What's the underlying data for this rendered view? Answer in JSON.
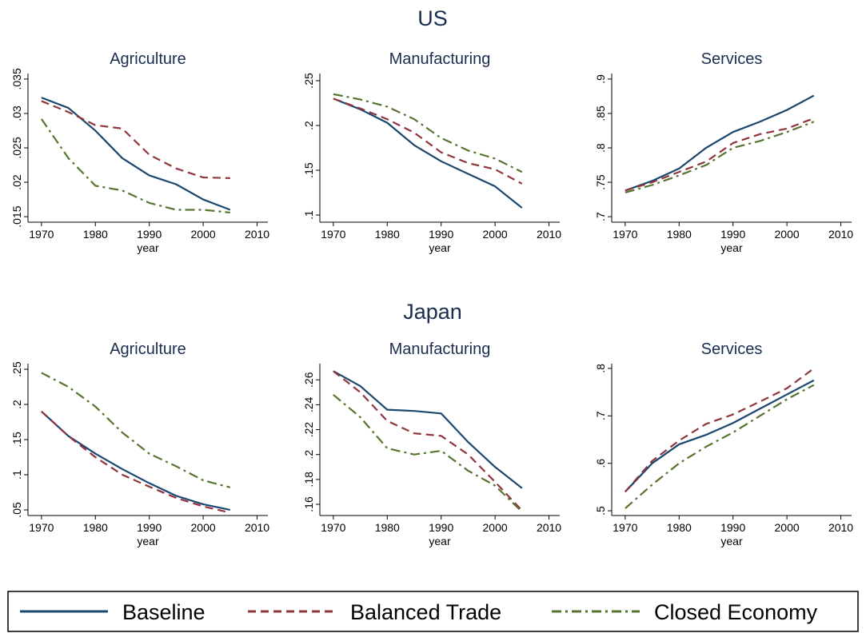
{
  "row_titles": [
    "US",
    "Japan"
  ],
  "chart_data": [
    {
      "type": "line",
      "title": "Agriculture",
      "x_label": "year",
      "x": [
        1970,
        1975,
        1980,
        1985,
        1990,
        1995,
        2000,
        2005
      ],
      "xlim": [
        1967.5,
        2012
      ],
      "xticks": [
        1970,
        1980,
        1990,
        2000,
        2010
      ],
      "ylim": [
        0.0142,
        0.0358
      ],
      "yticks": [
        {
          "value": 0.015,
          "label": ".015"
        },
        {
          "value": 0.02,
          "label": ".02"
        },
        {
          "value": 0.025,
          "label": ".025"
        },
        {
          "value": 0.03,
          "label": ".03"
        },
        {
          "value": 0.035,
          "label": ".035"
        }
      ],
      "series": [
        {
          "name": "Baseline",
          "color": "#1a476f",
          "values": [
            0.0323,
            0.0308,
            0.0275,
            0.0235,
            0.021,
            0.0197,
            0.0175,
            0.016
          ]
        },
        {
          "name": "Balanced Trade",
          "color": "#90353b",
          "values": [
            0.0318,
            0.0302,
            0.0283,
            0.0278,
            0.024,
            0.022,
            0.0207,
            0.0206
          ]
        },
        {
          "name": "Closed Economy",
          "color": "#55752f",
          "values": [
            0.0292,
            0.0235,
            0.0195,
            0.0188,
            0.017,
            0.016,
            0.016,
            0.0156
          ]
        }
      ]
    },
    {
      "type": "line",
      "title": "Manufacturing",
      "x_label": "year",
      "x": [
        1970,
        1975,
        1980,
        1985,
        1990,
        1995,
        2000,
        2005
      ],
      "xlim": [
        1967.5,
        2012
      ],
      "xticks": [
        1970,
        1980,
        1990,
        2000,
        2010
      ],
      "ylim": [
        0.092,
        0.258
      ],
      "yticks": [
        {
          "value": 0.1,
          "label": ".1"
        },
        {
          "value": 0.15,
          "label": ".15"
        },
        {
          "value": 0.2,
          "label": ".2"
        },
        {
          "value": 0.25,
          "label": ".25"
        }
      ],
      "series": [
        {
          "name": "Baseline",
          "color": "#1a476f",
          "values": [
            0.23,
            0.218,
            0.203,
            0.178,
            0.16,
            0.146,
            0.132,
            0.108
          ]
        },
        {
          "name": "Balanced Trade",
          "color": "#90353b",
          "values": [
            0.23,
            0.219,
            0.207,
            0.192,
            0.17,
            0.158,
            0.151,
            0.135
          ]
        },
        {
          "name": "Closed Economy",
          "color": "#55752f",
          "values": [
            0.235,
            0.229,
            0.221,
            0.207,
            0.186,
            0.172,
            0.163,
            0.148
          ]
        }
      ]
    },
    {
      "type": "line",
      "title": "Services",
      "x_label": "year",
      "x": [
        1970,
        1975,
        1980,
        1985,
        1990,
        1995,
        2000,
        2005
      ],
      "xlim": [
        1967.5,
        2012
      ],
      "xticks": [
        1970,
        1980,
        1990,
        2000,
        2010
      ],
      "ylim": [
        0.692,
        0.908
      ],
      "yticks": [
        {
          "value": 0.7,
          "label": ".7"
        },
        {
          "value": 0.75,
          "label": ".75"
        },
        {
          "value": 0.8,
          "label": ".8"
        },
        {
          "value": 0.85,
          "label": ".85"
        },
        {
          "value": 0.9,
          "label": ".9"
        }
      ],
      "series": [
        {
          "name": "Baseline",
          "color": "#1a476f",
          "values": [
            0.738,
            0.752,
            0.77,
            0.8,
            0.823,
            0.838,
            0.855,
            0.876
          ]
        },
        {
          "name": "Balanced Trade",
          "color": "#90353b",
          "values": [
            0.738,
            0.75,
            0.765,
            0.78,
            0.807,
            0.82,
            0.828,
            0.843
          ]
        },
        {
          "name": "Closed Economy",
          "color": "#55752f",
          "values": [
            0.735,
            0.746,
            0.76,
            0.775,
            0.8,
            0.81,
            0.823,
            0.838
          ]
        }
      ]
    },
    {
      "type": "line",
      "title": "Agriculture",
      "x_label": "year",
      "x": [
        1970,
        1975,
        1980,
        1985,
        1990,
        1995,
        2000,
        2005
      ],
      "xlim": [
        1967.5,
        2012
      ],
      "xticks": [
        1970,
        1980,
        1990,
        2000,
        2010
      ],
      "ylim": [
        0.042,
        0.258
      ],
      "yticks": [
        {
          "value": 0.05,
          "label": ".05"
        },
        {
          "value": 0.1,
          "label": ".1"
        },
        {
          "value": 0.15,
          "label": ".15"
        },
        {
          "value": 0.2,
          "label": ".2"
        },
        {
          "value": 0.25,
          "label": ".25"
        }
      ],
      "series": [
        {
          "name": "Baseline",
          "color": "#1a476f",
          "values": [
            0.19,
            0.155,
            0.13,
            0.108,
            0.088,
            0.07,
            0.058,
            0.05
          ]
        },
        {
          "name": "Balanced Trade",
          "color": "#90353b",
          "values": [
            0.19,
            0.155,
            0.125,
            0.1,
            0.083,
            0.067,
            0.055,
            0.046
          ]
        },
        {
          "name": "Closed Economy",
          "color": "#55752f",
          "values": [
            0.245,
            0.225,
            0.197,
            0.16,
            0.13,
            0.112,
            0.092,
            0.082
          ]
        }
      ]
    },
    {
      "type": "line",
      "title": "Manufacturing",
      "x_label": "year",
      "x": [
        1970,
        1975,
        1980,
        1985,
        1990,
        1995,
        2000,
        2005
      ],
      "xlim": [
        1967.5,
        2012
      ],
      "xticks": [
        1970,
        1980,
        1990,
        2000,
        2010
      ],
      "ylim": [
        0.151,
        0.273
      ],
      "yticks": [
        {
          "value": 0.16,
          "label": ".16"
        },
        {
          "value": 0.18,
          "label": ".18"
        },
        {
          "value": 0.2,
          "label": ".2"
        },
        {
          "value": 0.22,
          "label": ".22"
        },
        {
          "value": 0.24,
          "label": ".24"
        },
        {
          "value": 0.26,
          "label": ".26"
        }
      ],
      "series": [
        {
          "name": "Baseline",
          "color": "#1a476f",
          "values": [
            0.267,
            0.255,
            0.236,
            0.235,
            0.233,
            0.21,
            0.19,
            0.173
          ]
        },
        {
          "name": "Balanced Trade",
          "color": "#90353b",
          "values": [
            0.267,
            0.25,
            0.227,
            0.217,
            0.215,
            0.2,
            0.178,
            0.155
          ]
        },
        {
          "name": "Closed Economy",
          "color": "#55752f",
          "values": [
            0.248,
            0.23,
            0.205,
            0.2,
            0.203,
            0.187,
            0.175,
            0.154
          ]
        }
      ]
    },
    {
      "type": "line",
      "title": "Services",
      "x_label": "year",
      "x": [
        1970,
        1975,
        1980,
        1985,
        1990,
        1995,
        2000,
        2005
      ],
      "xlim": [
        1967.5,
        2012
      ],
      "xticks": [
        1970,
        1980,
        1990,
        2000,
        2010
      ],
      "ylim": [
        0.49,
        0.81
      ],
      "yticks": [
        {
          "value": 0.5,
          "label": ".5"
        },
        {
          "value": 0.6,
          "label": ".6"
        },
        {
          "value": 0.7,
          "label": ".7"
        },
        {
          "value": 0.8,
          "label": ".8"
        }
      ],
      "series": [
        {
          "name": "Baseline",
          "color": "#1a476f",
          "values": [
            0.54,
            0.6,
            0.64,
            0.66,
            0.685,
            0.715,
            0.745,
            0.775
          ]
        },
        {
          "name": "Balanced Trade",
          "color": "#90353b",
          "values": [
            0.54,
            0.605,
            0.648,
            0.683,
            0.703,
            0.73,
            0.758,
            0.8
          ]
        },
        {
          "name": "Closed Economy",
          "color": "#55752f",
          "values": [
            0.505,
            0.555,
            0.6,
            0.635,
            0.665,
            0.7,
            0.735,
            0.765
          ]
        }
      ]
    }
  ]
}
